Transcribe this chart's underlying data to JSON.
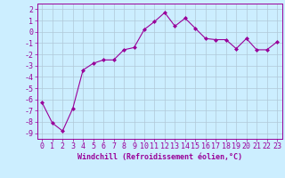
{
  "x": [
    0,
    1,
    2,
    3,
    4,
    5,
    6,
    7,
    8,
    9,
    10,
    11,
    12,
    13,
    14,
    15,
    16,
    17,
    18,
    19,
    20,
    21,
    22,
    23
  ],
  "y": [
    -6.3,
    -8.1,
    -8.8,
    -6.8,
    -3.4,
    -2.8,
    -2.5,
    -2.5,
    -1.6,
    -1.4,
    0.2,
    0.9,
    1.7,
    0.5,
    1.2,
    0.3,
    -0.6,
    -0.7,
    -0.7,
    -1.5,
    -0.6,
    -1.6,
    -1.6,
    -0.9
  ],
  "line_color": "#990099",
  "marker": "D",
  "marker_size": 2.0,
  "bg_color": "#cceeff",
  "grid_color": "#b0c8d8",
  "xlabel": "Windchill (Refroidissement éolien,°C)",
  "xlim": [
    -0.5,
    23.5
  ],
  "ylim": [
    -9.5,
    2.5
  ],
  "yticks": [
    2,
    1,
    0,
    -1,
    -2,
    -3,
    -4,
    -5,
    -6,
    -7,
    -8,
    -9
  ],
  "xticks": [
    0,
    1,
    2,
    3,
    4,
    5,
    6,
    7,
    8,
    9,
    10,
    11,
    12,
    13,
    14,
    15,
    16,
    17,
    18,
    19,
    20,
    21,
    22,
    23
  ],
  "label_fontsize": 6.0,
  "tick_fontsize": 6.0
}
